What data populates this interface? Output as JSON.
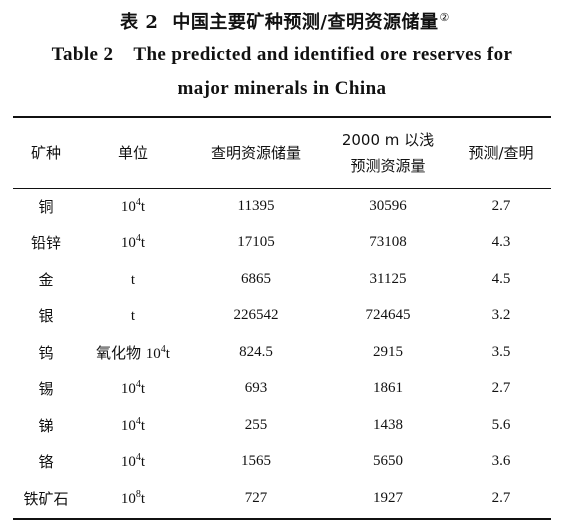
{
  "title_cn": {
    "prefix": "表 2",
    "text": "中国主要矿种预测/查明资源储量",
    "note": "②"
  },
  "title_en": {
    "line1_prefix": "Table 2",
    "line1_text": "The predicted and identified ore reserves for",
    "line2_text": "major minerals in China"
  },
  "table": {
    "headers": {
      "mineral": "矿种",
      "unit": "单位",
      "identified": "查明资源储量",
      "predicted_line1": "2000 m 以浅",
      "predicted_line2": "预测资源量",
      "ratio": "预测/查明"
    },
    "rows": [
      {
        "mineral": "铜",
        "unit_prefix": "",
        "unit_base": "10",
        "unit_exp": "4",
        "unit_suffix": "t",
        "identified": "11395",
        "predicted": "30596",
        "ratio": "2.7"
      },
      {
        "mineral": "铅锌",
        "unit_prefix": "",
        "unit_base": "10",
        "unit_exp": "4",
        "unit_suffix": "t",
        "identified": "17105",
        "predicted": "73108",
        "ratio": "4.3"
      },
      {
        "mineral": "金",
        "unit_prefix": "",
        "unit_base": "",
        "unit_exp": "",
        "unit_suffix": "t",
        "identified": "6865",
        "predicted": "31125",
        "ratio": "4.5"
      },
      {
        "mineral": "银",
        "unit_prefix": "",
        "unit_base": "",
        "unit_exp": "",
        "unit_suffix": "t",
        "identified": "226542",
        "predicted": "724645",
        "ratio": "3.2"
      },
      {
        "mineral": "钨",
        "unit_prefix": "氧化物 ",
        "unit_base": "10",
        "unit_exp": "4",
        "unit_suffix": "t",
        "identified": "824.5",
        "predicted": "2915",
        "ratio": "3.5"
      },
      {
        "mineral": "锡",
        "unit_prefix": "",
        "unit_base": "10",
        "unit_exp": "4",
        "unit_suffix": "t",
        "identified": "693",
        "predicted": "1861",
        "ratio": "2.7"
      },
      {
        "mineral": "锑",
        "unit_prefix": "",
        "unit_base": "10",
        "unit_exp": "4",
        "unit_suffix": "t",
        "identified": "255",
        "predicted": "1438",
        "ratio": "5.6"
      },
      {
        "mineral": "铬",
        "unit_prefix": "",
        "unit_base": "10",
        "unit_exp": "4",
        "unit_suffix": "t",
        "identified": "1565",
        "predicted": "5650",
        "ratio": "3.6"
      },
      {
        "mineral": "铁矿石",
        "unit_prefix": "",
        "unit_base": "10",
        "unit_exp": "8",
        "unit_suffix": "t",
        "identified": "727",
        "predicted": "1927",
        "ratio": "2.7"
      }
    ]
  }
}
